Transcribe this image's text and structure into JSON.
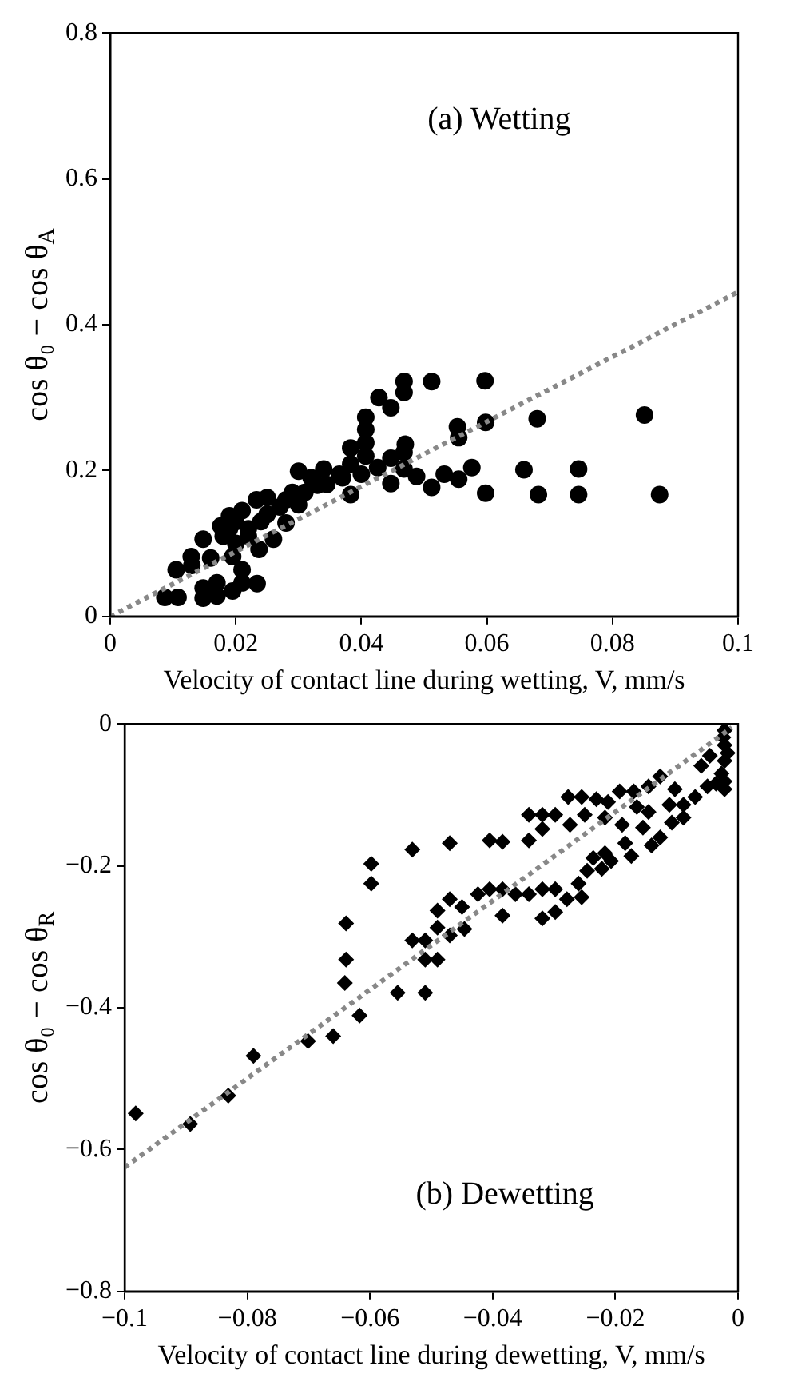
{
  "chart_data": [
    {
      "type": "scatter",
      "xlabel": "Velocity of contact line during wetting, V, mm/s",
      "ylabel": "cos θ₀ − cos θ$_{A}$",
      "annotations": [
        "(a) Wetting"
      ],
      "xlim": [
        0,
        0.1
      ],
      "ylim": [
        0,
        0.8
      ],
      "xticks": [
        0,
        0.02,
        0.04,
        0.06,
        0.08,
        0.1
      ],
      "yticks": [
        0,
        0.2,
        0.4,
        0.6,
        0.8
      ],
      "grid": false,
      "legend": false,
      "marker": "circle",
      "series": [
        {
          "color": "#000000",
          "x": [
            0.0087,
            0.0108,
            0.0105,
            0.0129,
            0.0148,
            0.0148,
            0.0148,
            0.017,
            0.017,
            0.0176,
            0.0195,
            0.0195,
            0.019,
            0.021,
            0.021,
            0.0234,
            0.021,
            0.0233,
            0.025,
            0.0237,
            0.026,
            0.028,
            0.03,
            0.03,
            0.034,
            0.0345,
            0.0365,
            0.0383,
            0.0383,
            0.0407,
            0.0407,
            0.0407,
            0.0407,
            0.04,
            0.0383,
            0.0428,
            0.0447,
            0.0468,
            0.0468,
            0.047,
            0.0468,
            0.0447,
            0.0447,
            0.0426,
            0.0468,
            0.0488,
            0.0512,
            0.0512,
            0.0532,
            0.0553,
            0.0555,
            0.0555,
            0.0576,
            0.0597,
            0.0598,
            0.0598,
            0.0659,
            0.068,
            0.0682,
            0.0746,
            0.0746,
            0.0851,
            0.0875,
            0.022,
            0.024,
            0.025,
            0.027,
            0.018,
            0.02,
            0.022,
            0.028,
            0.029,
            0.031,
            0.032,
            0.033,
            0.037,
            0.016,
            0.013,
            0.02,
            0.019
          ],
          "values": [
            0.026,
            0.026,
            0.064,
            0.082,
            0.106,
            0.025,
            0.039,
            0.028,
            0.046,
            0.124,
            0.035,
            0.082,
            0.138,
            0.064,
            0.046,
            0.045,
            0.145,
            0.16,
            0.163,
            0.092,
            0.106,
            0.128,
            0.199,
            0.153,
            0.202,
            0.181,
            0.195,
            0.231,
            0.209,
            0.273,
            0.256,
            0.238,
            0.22,
            0.195,
            0.167,
            0.3,
            0.286,
            0.322,
            0.307,
            0.236,
            0.225,
            0.217,
            0.182,
            0.204,
            0.202,
            0.192,
            0.322,
            0.177,
            0.195,
            0.26,
            0.245,
            0.188,
            0.204,
            0.323,
            0.266,
            0.169,
            0.201,
            0.271,
            0.167,
            0.202,
            0.167,
            0.276,
            0.167,
            0.12,
            0.13,
            0.14,
            0.15,
            0.11,
            0.1,
            0.11,
            0.16,
            0.17,
            0.17,
            0.19,
            0.18,
            0.19,
            0.08,
            0.07,
            0.13,
            0.12
          ]
        },
        {
          "type": "line",
          "color": "#888888",
          "line_style": "dotted",
          "marker": "none",
          "x": [
            0,
            0.1
          ],
          "values": [
            0,
            0.445
          ]
        }
      ]
    },
    {
      "type": "scatter",
      "xlabel": "Velocity of contact line during dewetting, V, mm/s",
      "ylabel": "cos θ₀ − cos θ$_{R}$",
      "annotations": [
        "(b) Dewetting"
      ],
      "xlim": [
        -0.1,
        0
      ],
      "ylim": [
        -0.8,
        0
      ],
      "xticks": [
        {
          "value": -0.1,
          "label": "−0.1"
        },
        {
          "value": -0.08,
          "label": "−0.08"
        },
        {
          "value": -0.06,
          "label": "−0.06"
        },
        {
          "value": -0.04,
          "label": "−0.04"
        },
        {
          "value": -0.02,
          "label": "−0.02"
        },
        0
      ],
      "yticks": [
        {
          "value": -0.8,
          "label": "−0.8"
        },
        {
          "value": -0.6,
          "label": "−0.6"
        },
        {
          "value": -0.4,
          "label": "−0.4"
        },
        {
          "value": -0.2,
          "label": "−0.2"
        },
        0
      ],
      "grid": false,
      "legend": false,
      "marker": "diamond",
      "series": [
        {
          "color": "#000000",
          "x": [
            -0.0982,
            -0.0893,
            -0.0831,
            -0.079,
            -0.0701,
            -0.066,
            -0.0617,
            -0.0641,
            -0.0639,
            -0.0639,
            -0.0598,
            -0.0598,
            -0.0555,
            -0.051,
            -0.051,
            -0.049,
            -0.0531,
            -0.051,
            -0.049,
            -0.049,
            -0.047,
            -0.047,
            -0.045,
            -0.0446,
            -0.0531,
            -0.047,
            -0.0405,
            -0.0384,
            -0.0424,
            -0.0405,
            -0.0384,
            -0.0384,
            -0.0363,
            -0.0341,
            -0.0319,
            -0.0319,
            -0.0298,
            -0.0298,
            -0.0279,
            -0.0255,
            -0.026,
            -0.0246,
            -0.0236,
            -0.0222,
            -0.0217,
            -0.0207,
            -0.0341,
            -0.0341,
            -0.0319,
            -0.0319,
            -0.0298,
            -0.0277,
            -0.0274,
            -0.0255,
            -0.025,
            -0.0231,
            -0.0217,
            -0.0212,
            -0.0193,
            -0.0189,
            -0.0184,
            -0.0174,
            -0.017,
            -0.0165,
            -0.0155,
            -0.0146,
            -0.0146,
            -0.0141,
            -0.0127,
            -0.0127,
            -0.0112,
            -0.0103,
            -0.0089,
            -0.007,
            -0.006,
            -0.005,
            -0.0046,
            -0.0036,
            -0.0027,
            -0.0022,
            -0.0022,
            -0.0022,
            -0.0022,
            -0.0022,
            -0.0024,
            -0.0017,
            -0.0089,
            -0.0108
          ],
          "values": [
            -0.549,
            -0.564,
            -0.524,
            -0.468,
            -0.447,
            -0.44,
            -0.411,
            -0.365,
            -0.332,
            -0.281,
            -0.225,
            -0.197,
            -0.379,
            -0.379,
            -0.332,
            -0.332,
            -0.305,
            -0.305,
            -0.287,
            -0.263,
            -0.247,
            -0.298,
            -0.258,
            -0.289,
            -0.177,
            -0.168,
            -0.164,
            -0.166,
            -0.24,
            -0.233,
            -0.233,
            -0.27,
            -0.24,
            -0.24,
            -0.233,
            -0.274,
            -0.265,
            -0.233,
            -0.247,
            -0.244,
            -0.225,
            -0.207,
            -0.189,
            -0.204,
            -0.182,
            -0.193,
            -0.164,
            -0.128,
            -0.128,
            -0.148,
            -0.128,
            -0.103,
            -0.142,
            -0.103,
            -0.128,
            -0.106,
            -0.132,
            -0.11,
            -0.095,
            -0.142,
            -0.168,
            -0.186,
            -0.095,
            -0.117,
            -0.146,
            -0.088,
            -0.124,
            -0.171,
            -0.16,
            -0.074,
            -0.114,
            -0.092,
            -0.114,
            -0.103,
            -0.059,
            -0.088,
            -0.045,
            -0.084,
            -0.07,
            -0.009,
            -0.03,
            -0.052,
            -0.081,
            -0.092,
            -0.019,
            -0.041,
            -0.132,
            -0.139
          ]
        },
        {
          "type": "line",
          "color": "#888888",
          "line_style": "dotted",
          "marker": "none",
          "x": [
            -0.1,
            -0.001
          ],
          "values": [
            -0.625,
            -0.005
          ]
        }
      ]
    }
  ]
}
